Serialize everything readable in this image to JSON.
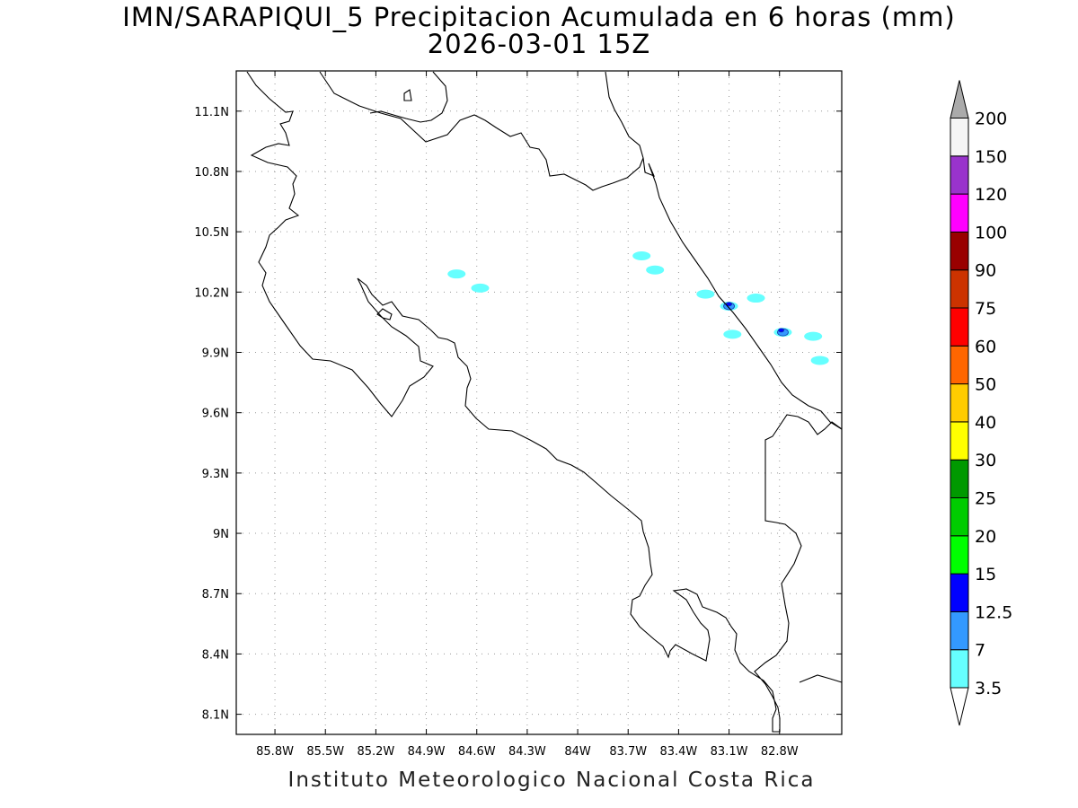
{
  "title": {
    "line1": "IMN/SARAPIQUI_5 Precipitacion Acumulada en 6 horas (mm)",
    "line2": "2026-03-01 15Z"
  },
  "credit": "Instituto Meteorologico Nacional Costa Rica",
  "map": {
    "region": "Costa Rica",
    "lon_range": [
      -86.03,
      -82.43
    ],
    "lat_range": [
      8.0,
      11.3
    ],
    "lon_ticks": [
      {
        "value": -85.8,
        "label": "85.8W"
      },
      {
        "value": -85.5,
        "label": "85.5W"
      },
      {
        "value": -85.2,
        "label": "85.2W"
      },
      {
        "value": -84.9,
        "label": "84.9W"
      },
      {
        "value": -84.6,
        "label": "84.6W"
      },
      {
        "value": -84.3,
        "label": "84.3W"
      },
      {
        "value": -84.0,
        "label": "84W"
      },
      {
        "value": -83.7,
        "label": "83.7W"
      },
      {
        "value": -83.4,
        "label": "83.4W"
      },
      {
        "value": -83.1,
        "label": "83.1W"
      },
      {
        "value": -82.8,
        "label": "82.8W"
      }
    ],
    "lat_ticks": [
      {
        "value": 11.1,
        "label": "11.1N"
      },
      {
        "value": 10.8,
        "label": "10.8N"
      },
      {
        "value": 10.5,
        "label": "10.5N"
      },
      {
        "value": 10.2,
        "label": "10.2N"
      },
      {
        "value": 9.9,
        "label": "9.9N"
      },
      {
        "value": 9.6,
        "label": "9.6N"
      },
      {
        "value": 9.3,
        "label": "9.3N"
      },
      {
        "value": 9.0,
        "label": "9N"
      },
      {
        "value": 8.7,
        "label": "8.7N"
      },
      {
        "value": 8.4,
        "label": "8.4N"
      },
      {
        "value": 8.1,
        "label": "8.1N"
      }
    ],
    "grid": true
  },
  "colorbar": {
    "labels": [
      "3.5",
      "7",
      "12.5",
      "15",
      "20",
      "25",
      "30",
      "40",
      "50",
      "60",
      "75",
      "90",
      "100",
      "120",
      "150",
      "200"
    ],
    "colors": [
      "#66ffff",
      "#3399ff",
      "#0000ff",
      "#00ff00",
      "#00cc00",
      "#009900",
      "#ffff00",
      "#ffcc00",
      "#ff6600",
      "#ff0000",
      "#cc3300",
      "#990000",
      "#ff00ff",
      "#9933cc",
      "#f5f5f5"
    ],
    "over_color": "#aaaaaa",
    "under_color": "#ffffff"
  },
  "precip_areas": [
    {
      "lon": -83.62,
      "lat": 10.38,
      "level": 0
    },
    {
      "lon": -83.54,
      "lat": 10.31,
      "level": 0
    },
    {
      "lon": -84.58,
      "lat": 10.22,
      "level": 0
    },
    {
      "lon": -84.72,
      "lat": 10.29,
      "level": 0
    },
    {
      "lon": -83.24,
      "lat": 10.19,
      "level": 0
    },
    {
      "lon": -83.1,
      "lat": 10.13,
      "level": 0
    },
    {
      "lon": -83.1,
      "lat": 10.13,
      "level": 1
    },
    {
      "lon": -83.1,
      "lat": 10.14,
      "level": 2
    },
    {
      "lon": -82.94,
      "lat": 10.17,
      "level": 0
    },
    {
      "lon": -83.08,
      "lat": 9.99,
      "level": 0
    },
    {
      "lon": -82.78,
      "lat": 10.0,
      "level": 0
    },
    {
      "lon": -82.78,
      "lat": 10.0,
      "level": 1
    },
    {
      "lon": -82.79,
      "lat": 10.01,
      "level": 2
    },
    {
      "lon": -82.6,
      "lat": 9.98,
      "level": 0
    },
    {
      "lon": -82.56,
      "lat": 9.86,
      "level": 0
    }
  ]
}
